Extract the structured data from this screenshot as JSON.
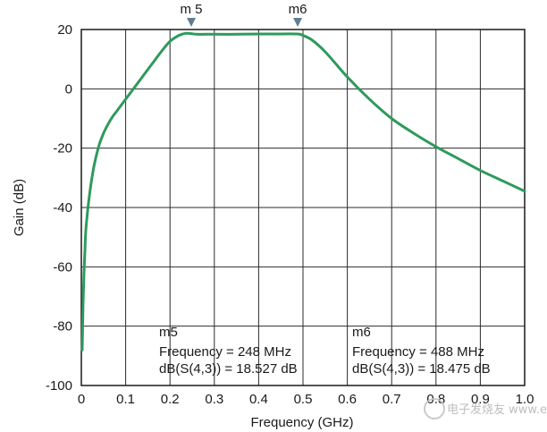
{
  "chart_data": {
    "type": "line",
    "title": "",
    "xlabel": "Frequency (GHz)",
    "ylabel": "Gain (dB)",
    "xlim": [
      0,
      1.0
    ],
    "ylim": [
      -100,
      20
    ],
    "x_ticks": [
      "0",
      "0.1",
      "0.2",
      "0.3",
      "0.4",
      "0.5",
      "0.6",
      "0.7",
      "0.8",
      "0.9",
      "1.0"
    ],
    "y_ticks": [
      "20",
      "0",
      "-20",
      "-40",
      "-60",
      "-80",
      "-100"
    ],
    "grid": true,
    "line_color": "#2e9a5c",
    "marker_color": "#5f7f8f",
    "series": [
      {
        "x": [
          0.002,
          0.004,
          0.006,
          0.008,
          0.01,
          0.015,
          0.02,
          0.025,
          0.03,
          0.04,
          0.05,
          0.06,
          0.07,
          0.08,
          0.09,
          0.1,
          0.12,
          0.14,
          0.16,
          0.18,
          0.2,
          0.22,
          0.235,
          0.248,
          0.26,
          0.28,
          0.3,
          0.35,
          0.4,
          0.45,
          0.488,
          0.5,
          0.52,
          0.55,
          0.6,
          0.65,
          0.7,
          0.75,
          0.8,
          0.85,
          0.9,
          0.95,
          1.0
        ],
        "y": [
          -88,
          -72,
          -62,
          -55,
          -48,
          -40,
          -34,
          -29,
          -25,
          -19,
          -15,
          -12,
          -9.5,
          -7.5,
          -5.5,
          -3.5,
          0.5,
          4.5,
          8.5,
          12.5,
          16,
          18,
          18.7,
          18.6,
          18.4,
          18.4,
          18.4,
          18.4,
          18.5,
          18.5,
          18.5,
          18.0,
          16.5,
          12.5,
          4.0,
          -3.5,
          -10.0,
          -15.0,
          -19.5,
          -23.5,
          -27.5,
          -31.0,
          -34.5
        ]
      }
    ],
    "markers": [
      {
        "label": "m5",
        "x": 0.248,
        "y": 18.527
      },
      {
        "label": "m6",
        "x": 0.488,
        "y": 18.475
      }
    ]
  },
  "annotations": {
    "m5": {
      "title": "m5",
      "line1": "Frequency = 248 MHz",
      "line2": "dB(S(4,3)) = 18.527 dB"
    },
    "m6": {
      "title": "m6",
      "line1": "Frequency = 488 MHz",
      "line2": "dB(S(4,3)) = 18.475 dB"
    }
  },
  "watermark": "电子发烧友 www.elecfans.com"
}
